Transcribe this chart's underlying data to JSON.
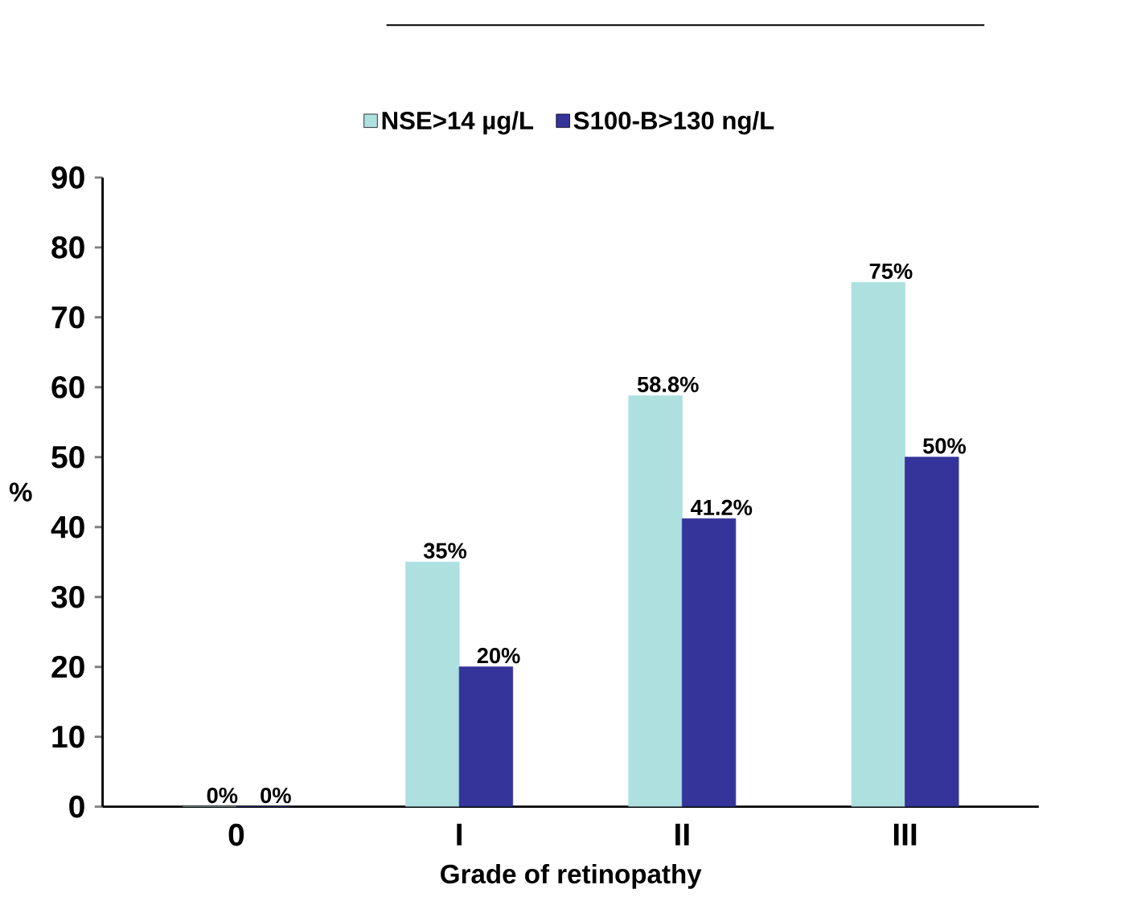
{
  "chart_data": {
    "type": "bar",
    "xlabel": "Grade of retinopathy",
    "ylabel": "%",
    "categories": [
      "0",
      "I",
      "II",
      "III"
    ],
    "series": [
      {
        "name": "NSE>14 µg/L",
        "color": "#aee0e0",
        "values": [
          0,
          35,
          58.8,
          75
        ],
        "value_labels": [
          "0%",
          "35%",
          "58.8%",
          "75%"
        ]
      },
      {
        "name": "S100-B>130 ng/L",
        "color": "#34349a",
        "values": [
          0,
          20,
          41.2,
          50
        ],
        "value_labels": [
          "0%",
          "20%",
          "41.2%",
          "50%"
        ]
      }
    ],
    "ylim": [
      0,
      90
    ],
    "yticks": [
      0,
      10,
      20,
      30,
      40,
      50,
      60,
      70,
      80,
      90
    ],
    "grid": false,
    "legend": "top"
  }
}
